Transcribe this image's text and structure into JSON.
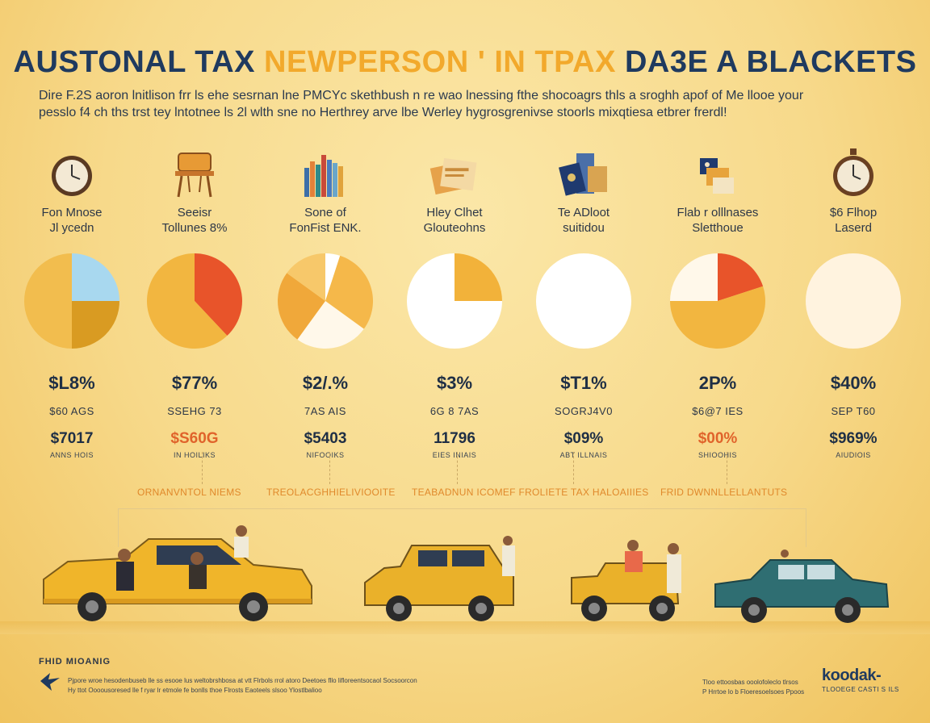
{
  "title": {
    "part1": "AUSTONAL TAX",
    "part2": "NEWPERSON ' IN TPAX",
    "part3": "DA3E A BLACKETS"
  },
  "intro": {
    "line1": "Dire F.2S aoron lnitlison frr ls ehe sesrnan lne PMCYc skethbush n re wao lnessing fthe shocoagrs thls a sroghh apof of Me llooe your",
    "line2": "pesslo f4 ch ths trst tey lntotnee ls 2l wlth sne no Herthrey arve lbe Werley hygrosgrenivse stoorls mixqtiesa etbrer frerdl!"
  },
  "brackets": [
    {
      "label": "Fon Mnose\nJl ycedn",
      "icon": "clock-icon",
      "pct": "$L8%",
      "amount": "$60 AGS",
      "big": "$7017",
      "sub": "ANNS HOIS",
      "accent": false,
      "pie": [
        {
          "v": 25,
          "c": "#a8d8ef"
        },
        {
          "v": 25,
          "c": "#d99b22"
        },
        {
          "v": 50,
          "c": "#f2bd4e"
        }
      ]
    },
    {
      "label": "Seeisr\nTollunes 8%",
      "icon": "chair-icon",
      "pct": "$77%",
      "amount": "SSEHG 73",
      "big": "$S60G",
      "sub": "IN HOILIKS",
      "accent": true,
      "pie": [
        {
          "v": 38,
          "c": "#e8542a"
        },
        {
          "v": 62,
          "c": "#f2b640"
        }
      ]
    },
    {
      "label": "Sone of\nFonFist ENK.",
      "icon": "books-icon",
      "pct": "$2/.%",
      "amount": "7AS  AIS",
      "big": "$5403",
      "sub": "NIFOOIKS",
      "accent": false,
      "pie": [
        {
          "v": 5,
          "c": "#ffffff"
        },
        {
          "v": 30,
          "c": "#f5b84a"
        },
        {
          "v": 25,
          "c": "#fff8ea"
        },
        {
          "v": 25,
          "c": "#f0a83a"
        },
        {
          "v": 15,
          "c": "#f7c86a"
        }
      ]
    },
    {
      "label": "Hley Clhet\nGlouteohns",
      "icon": "papers-icon",
      "pct": "$3%",
      "amount": "6G 8 7AS",
      "big": "11796",
      "sub": "EIES INIAIS",
      "accent": false,
      "pie": [
        {
          "v": 25,
          "c": "#f2b23a"
        },
        {
          "v": 75,
          "c": "#ffffff"
        }
      ]
    },
    {
      "label": "Te ADloot\nsuitidou",
      "icon": "passport-icon",
      "pct": "$T1%",
      "amount": "SOGRJ4V0",
      "big": "$09%",
      "sub": "ABT ILLNAIS",
      "accent": false,
      "pie": [
        {
          "v": 100,
          "c": "#ffffff"
        }
      ]
    },
    {
      "label": "Flab r olllnases\nSletthoue",
      "icon": "flag-icon",
      "pct": "2P%",
      "amount": "$6@7 IES",
      "big": "$00%",
      "sub": "SHIOOHIS",
      "accent": true,
      "pie": [
        {
          "v": 20,
          "c": "#e8542a"
        },
        {
          "v": 55,
          "c": "#f2b640"
        },
        {
          "v": 25,
          "c": "#fff8ea"
        }
      ]
    },
    {
      "label": "$6 Flhop\nLaserd",
      "icon": "clock-icon",
      "pct": "$40%",
      "amount": "SEP T60",
      "big": "$969%",
      "sub": "AIUDIOIS",
      "accent": false,
      "pie": [
        {
          "v": 100,
          "c": "#fff3df"
        }
      ]
    }
  ],
  "connectors": {
    "label1": "ORNANVNTOL NIEMS",
    "label2": "TREOLACGHHIELIVIOOITE",
    "label3": "TEABADNUN ICOMEF FROLIETE TAX HALOAIIIES",
    "label4": "FRID DWNNLLELLANTUTS"
  },
  "footer": {
    "left_title": "FHID MIOANIG",
    "fine_left1": "Pjpore wroe hesodenbuseb lle ss esooe lus weltobrshbosa at vtt Flrbols rrol atoro Deetoes fllo lifloreentsocaol Socsoorcon",
    "fine_left2": "Hy ttot Oooousoresed lle f ryar lr etmole fe bonlls thoe Flrosts Eaoteels slsoo Ylostlbalioo",
    "fine_right1": "Tloo ettoosbas ooolofoleclo tlrsos",
    "fine_right2": "P Hrrtoe lo b  Floeresoelsoes Ppoos",
    "brand": "koodak-",
    "brand_sub": "TLOOEGE CASTI S ILS"
  },
  "colors": {
    "accent_orange": "#f2a92c",
    "accent_red": "#e0632b",
    "navy": "#1f3a5f",
    "background": "#f7d98a"
  }
}
